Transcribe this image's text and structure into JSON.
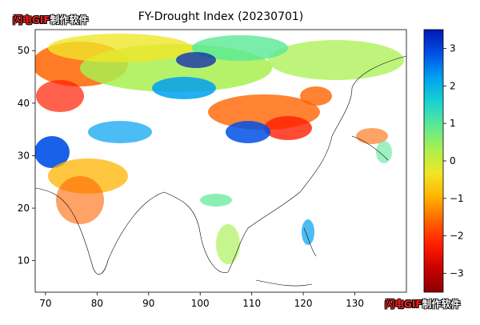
{
  "title": "FY-Drought Index (20230701)",
  "watermark": {
    "brand": "闪电GIF",
    "suffix": "制作软件"
  },
  "map": {
    "lon_range": [
      68,
      140
    ],
    "lat_range": [
      4,
      54
    ],
    "lon_ticks": [
      "70",
      "80",
      "90",
      "100",
      "110",
      "120",
      "130"
    ],
    "lat_ticks": [
      "10",
      "20",
      "30",
      "40",
      "50"
    ]
  },
  "colorbar": {
    "range": [
      -3.5,
      3.5
    ],
    "ticks": [
      "3",
      "2",
      "1",
      "0",
      "−1",
      "−2",
      "−3"
    ],
    "colors": [
      "#0018b4",
      "#0050e6",
      "#00a0f0",
      "#18d2d2",
      "#5ae896",
      "#a8f050",
      "#f0e628",
      "#ffb400",
      "#ff6400",
      "#ff1e00",
      "#c80000",
      "#8c0000"
    ]
  }
}
